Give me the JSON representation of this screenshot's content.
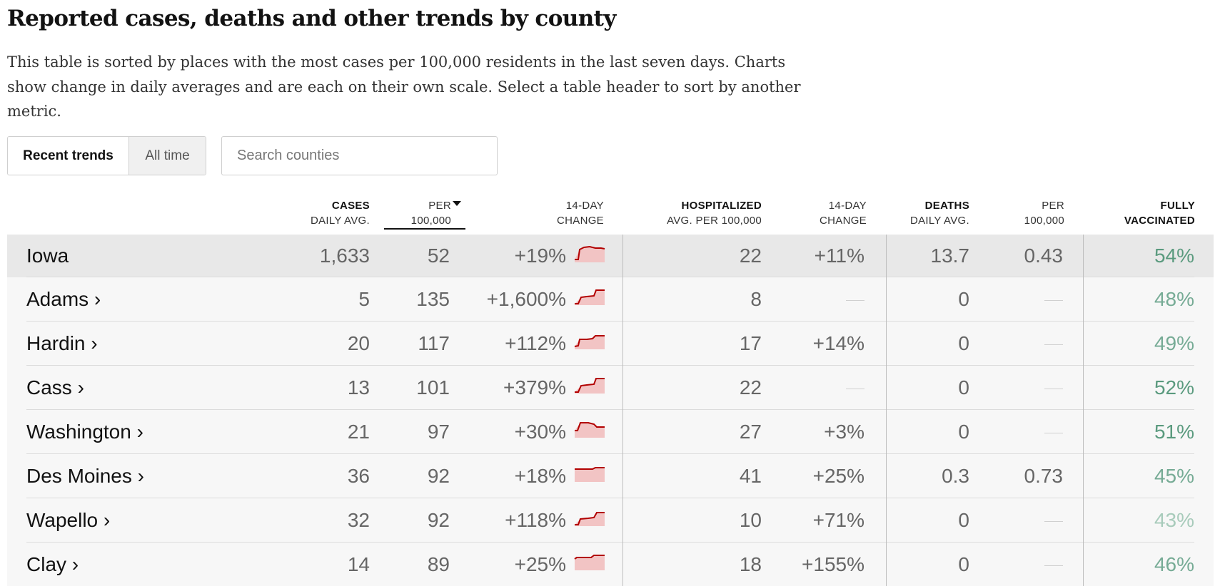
{
  "title": "Reported cases, deaths and other trends by county",
  "description": "This table is sorted by places with the most cases per 100,000 residents in the last seven days. Charts show change in daily averages and are each on their own scale. Select a table header to sort by another metric.",
  "toggle": {
    "recent": "Recent trends",
    "all_time": "All time"
  },
  "search": {
    "placeholder": "Search counties"
  },
  "headers": {
    "cases": {
      "line1": "CASES",
      "line2": "DAILY AVG."
    },
    "per": {
      "line1": "PER",
      "line2": "100,000"
    },
    "change": {
      "line1": "14-DAY",
      "line2": "CHANGE"
    },
    "hosp": {
      "line1": "HOSPITALIZED",
      "line2": "AVG. PER 100,000"
    },
    "hosp_change": {
      "line1": "14-DAY",
      "line2": "CHANGE"
    },
    "deaths": {
      "line1": "DEATHS",
      "line2": "DAILY AVG."
    },
    "deaths_per": {
      "line1": "PER",
      "line2": "100,000"
    },
    "vacc": {
      "line1": "FULLY",
      "line2": "VACCINATED"
    }
  },
  "colors": {
    "spark_line": "#b20000",
    "spark_fill": "#f2c4c4",
    "vacc_dark": "#5a9a7e",
    "vacc_mid": "#76ab95",
    "vacc_light": "#a8cbbb"
  },
  "rows": [
    {
      "name": "Iowa",
      "cases": "1,633",
      "per": "52",
      "change": "+19%",
      "hosp": "22",
      "hosp_change": "+11%",
      "deaths": "13.7",
      "deaths_per": "0.43",
      "vacc": "54%",
      "vacc_level": "dark",
      "spark": "hump",
      "is_state": true
    },
    {
      "name": "Adams ›",
      "cases": "5",
      "per": "135",
      "change": "+1,600%",
      "hosp": "8",
      "hosp_change": "",
      "deaths": "0",
      "deaths_per": "",
      "vacc": "48%",
      "vacc_level": "mid",
      "spark": "step",
      "is_state": false
    },
    {
      "name": "Hardin ›",
      "cases": "20",
      "per": "117",
      "change": "+112%",
      "hosp": "17",
      "hosp_change": "+14%",
      "deaths": "0",
      "deaths_per": "",
      "vacc": "49%",
      "vacc_level": "mid",
      "spark": "flatstep",
      "is_state": false
    },
    {
      "name": "Cass ›",
      "cases": "13",
      "per": "101",
      "change": "+379%",
      "hosp": "22",
      "hosp_change": "",
      "deaths": "0",
      "deaths_per": "",
      "vacc": "52%",
      "vacc_level": "dark",
      "spark": "step",
      "is_state": false
    },
    {
      "name": "Washington ›",
      "cases": "21",
      "per": "97",
      "change": "+30%",
      "hosp": "27",
      "hosp_change": "+3%",
      "deaths": "0",
      "deaths_per": "",
      "vacc": "51%",
      "vacc_level": "dark",
      "spark": "peakdown",
      "is_state": false
    },
    {
      "name": "Des Moines ›",
      "cases": "36",
      "per": "92",
      "change": "+18%",
      "hosp": "41",
      "hosp_change": "+25%",
      "deaths": "0.3",
      "deaths_per": "0.73",
      "vacc": "45%",
      "vacc_level": "mid",
      "spark": "flat",
      "is_state": false
    },
    {
      "name": "Wapello ›",
      "cases": "32",
      "per": "92",
      "change": "+118%",
      "hosp": "10",
      "hosp_change": "+71%",
      "deaths": "0",
      "deaths_per": "",
      "vacc": "43%",
      "vacc_level": "light",
      "spark": "step2",
      "is_state": false
    },
    {
      "name": "Clay ›",
      "cases": "14",
      "per": "89",
      "change": "+25%",
      "hosp": "18",
      "hosp_change": "+155%",
      "deaths": "0",
      "deaths_per": "",
      "vacc": "46%",
      "vacc_level": "mid",
      "spark": "flat2",
      "is_state": false
    }
  ]
}
